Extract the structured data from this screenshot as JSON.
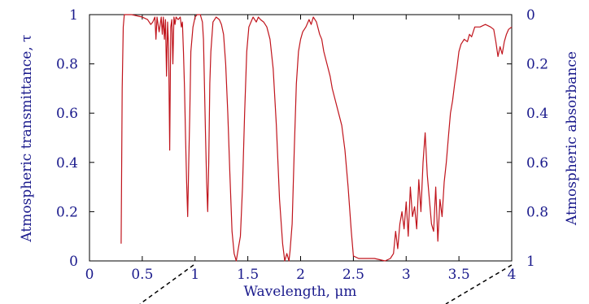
{
  "chart_data": {
    "type": "line",
    "title": "",
    "xlabel": "Wavelength, μm",
    "ylabel": "Atmospheric transmittance, τ",
    "y2label": "Atmospheric absorbance",
    "xlim": [
      0,
      4
    ],
    "ylim": [
      0,
      1
    ],
    "x_ticks": [
      "0",
      "0.5",
      "1",
      "1.5",
      "2",
      "2.5",
      "3",
      "3.5",
      "4"
    ],
    "y_ticks": [
      "0",
      "0.2",
      "0.4",
      "0.6",
      "0.8",
      "1"
    ],
    "y2_ticks": [
      "1",
      "0.8",
      "0.6",
      "0.4",
      "0.2",
      "0"
    ],
    "grid": false,
    "series": [
      {
        "line_color": "#c0141c",
        "points": [
          [
            0.3,
            0.07
          ],
          [
            0.31,
            0.7
          ],
          [
            0.32,
            0.95
          ],
          [
            0.33,
            1.0
          ],
          [
            0.4,
            1.0
          ],
          [
            0.5,
            0.99
          ],
          [
            0.55,
            0.98
          ],
          [
            0.58,
            0.96
          ],
          [
            0.6,
            0.97
          ],
          [
            0.62,
            0.99
          ],
          [
            0.63,
            0.9
          ],
          [
            0.64,
            0.99
          ],
          [
            0.66,
            0.93
          ],
          [
            0.68,
            0.99
          ],
          [
            0.69,
            0.92
          ],
          [
            0.7,
            0.99
          ],
          [
            0.71,
            0.9
          ],
          [
            0.72,
            0.98
          ],
          [
            0.73,
            0.75
          ],
          [
            0.74,
            0.97
          ],
          [
            0.75,
            0.86
          ],
          [
            0.76,
            0.45
          ],
          [
            0.77,
            0.95
          ],
          [
            0.78,
            0.98
          ],
          [
            0.79,
            0.8
          ],
          [
            0.8,
            0.99
          ],
          [
            0.81,
            0.96
          ],
          [
            0.82,
            0.99
          ],
          [
            0.84,
            0.98
          ],
          [
            0.86,
            0.99
          ],
          [
            0.87,
            0.95
          ],
          [
            0.88,
            0.97
          ],
          [
            0.89,
            0.85
          ],
          [
            0.9,
            0.7
          ],
          [
            0.91,
            0.5
          ],
          [
            0.92,
            0.32
          ],
          [
            0.93,
            0.18
          ],
          [
            0.94,
            0.4
          ],
          [
            0.95,
            0.6
          ],
          [
            0.96,
            0.85
          ],
          [
            0.98,
            0.95
          ],
          [
            1.0,
            0.99
          ],
          [
            1.02,
            1.0
          ],
          [
            1.05,
            1.0
          ],
          [
            1.07,
            0.97
          ],
          [
            1.08,
            0.9
          ],
          [
            1.09,
            0.7
          ],
          [
            1.1,
            0.5
          ],
          [
            1.11,
            0.32
          ],
          [
            1.12,
            0.2
          ],
          [
            1.13,
            0.4
          ],
          [
            1.14,
            0.72
          ],
          [
            1.15,
            0.85
          ],
          [
            1.17,
            0.97
          ],
          [
            1.2,
            0.99
          ],
          [
            1.23,
            0.98
          ],
          [
            1.25,
            0.96
          ],
          [
            1.27,
            0.92
          ],
          [
            1.29,
            0.8
          ],
          [
            1.31,
            0.6
          ],
          [
            1.33,
            0.35
          ],
          [
            1.35,
            0.12
          ],
          [
            1.37,
            0.03
          ],
          [
            1.39,
            0.0
          ],
          [
            1.41,
            0.05
          ],
          [
            1.43,
            0.1
          ],
          [
            1.45,
            0.3
          ],
          [
            1.47,
            0.6
          ],
          [
            1.49,
            0.85
          ],
          [
            1.51,
            0.95
          ],
          [
            1.53,
            0.97
          ],
          [
            1.55,
            0.99
          ],
          [
            1.58,
            0.97
          ],
          [
            1.6,
            0.99
          ],
          [
            1.62,
            0.98
          ],
          [
            1.65,
            0.97
          ],
          [
            1.68,
            0.95
          ],
          [
            1.71,
            0.9
          ],
          [
            1.74,
            0.78
          ],
          [
            1.77,
            0.55
          ],
          [
            1.8,
            0.25
          ],
          [
            1.83,
            0.07
          ],
          [
            1.85,
            0.0
          ],
          [
            1.87,
            0.03
          ],
          [
            1.89,
            0.0
          ],
          [
            1.9,
            0.04
          ],
          [
            1.92,
            0.15
          ],
          [
            1.94,
            0.45
          ],
          [
            1.96,
            0.72
          ],
          [
            1.98,
            0.85
          ],
          [
            2.0,
            0.9
          ],
          [
            2.02,
            0.93
          ],
          [
            2.05,
            0.95
          ],
          [
            2.08,
            0.98
          ],
          [
            2.1,
            0.96
          ],
          [
            2.12,
            0.99
          ],
          [
            2.15,
            0.97
          ],
          [
            2.18,
            0.92
          ],
          [
            2.2,
            0.9
          ],
          [
            2.22,
            0.85
          ],
          [
            2.25,
            0.8
          ],
          [
            2.28,
            0.75
          ],
          [
            2.3,
            0.7
          ],
          [
            2.33,
            0.65
          ],
          [
            2.36,
            0.6
          ],
          [
            2.39,
            0.55
          ],
          [
            2.42,
            0.45
          ],
          [
            2.45,
            0.3
          ],
          [
            2.48,
            0.12
          ],
          [
            2.5,
            0.02
          ],
          [
            2.55,
            0.01
          ],
          [
            2.6,
            0.01
          ],
          [
            2.7,
            0.01
          ],
          [
            2.8,
            0.0
          ],
          [
            2.85,
            0.01
          ],
          [
            2.88,
            0.03
          ],
          [
            2.9,
            0.12
          ],
          [
            2.92,
            0.05
          ],
          [
            2.94,
            0.15
          ],
          [
            2.96,
            0.2
          ],
          [
            2.98,
            0.13
          ],
          [
            3.0,
            0.24
          ],
          [
            3.02,
            0.1
          ],
          [
            3.04,
            0.3
          ],
          [
            3.06,
            0.18
          ],
          [
            3.08,
            0.22
          ],
          [
            3.1,
            0.13
          ],
          [
            3.12,
            0.33
          ],
          [
            3.14,
            0.2
          ],
          [
            3.16,
            0.4
          ],
          [
            3.18,
            0.52
          ],
          [
            3.2,
            0.35
          ],
          [
            3.22,
            0.25
          ],
          [
            3.24,
            0.15
          ],
          [
            3.26,
            0.12
          ],
          [
            3.28,
            0.3
          ],
          [
            3.3,
            0.08
          ],
          [
            3.32,
            0.25
          ],
          [
            3.34,
            0.18
          ],
          [
            3.36,
            0.32
          ],
          [
            3.38,
            0.4
          ],
          [
            3.4,
            0.5
          ],
          [
            3.42,
            0.6
          ],
          [
            3.44,
            0.65
          ],
          [
            3.46,
            0.72
          ],
          [
            3.48,
            0.78
          ],
          [
            3.5,
            0.85
          ],
          [
            3.52,
            0.88
          ],
          [
            3.55,
            0.9
          ],
          [
            3.58,
            0.89
          ],
          [
            3.6,
            0.92
          ],
          [
            3.62,
            0.91
          ],
          [
            3.65,
            0.95
          ],
          [
            3.7,
            0.95
          ],
          [
            3.75,
            0.96
          ],
          [
            3.8,
            0.95
          ],
          [
            3.83,
            0.94
          ],
          [
            3.85,
            0.89
          ],
          [
            3.87,
            0.83
          ],
          [
            3.89,
            0.87
          ],
          [
            3.91,
            0.84
          ],
          [
            3.93,
            0.89
          ],
          [
            3.95,
            0.92
          ],
          [
            3.97,
            0.94
          ],
          [
            4.0,
            0.95
          ]
        ]
      }
    ]
  }
}
